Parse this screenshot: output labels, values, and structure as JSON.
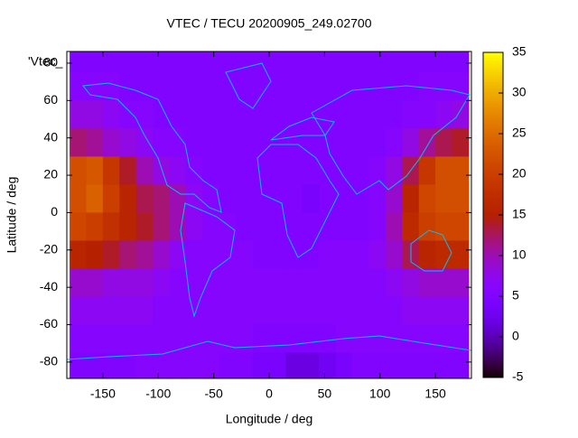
{
  "chart_data": {
    "type": "heatmap",
    "title": "VTEC / TECU 20200905_249.02700",
    "x_label": "Longitude / deg",
    "y_label": "Latitude / deg",
    "legend_label": "'Vtec_",
    "colormap": "gnuplot",
    "line_color": "#00bfff",
    "xlim": [
      -182.5,
      182.5
    ],
    "ylim": [
      -88.75,
      86.25
    ],
    "zlim": [
      -5,
      35
    ],
    "xticks": [
      -150,
      -100,
      -50,
      0,
      50,
      100,
      150
    ],
    "yticks": [
      -80,
      -60,
      -40,
      -20,
      0,
      20,
      40,
      60,
      80
    ],
    "zticks": [
      -5,
      0,
      5,
      10,
      15,
      20,
      25,
      30,
      35
    ],
    "x": [
      -172.5,
      -157.5,
      -142.5,
      -127.5,
      -112.5,
      -97.5,
      -82.5,
      -67.5,
      -52.5,
      -37.5,
      -22.5,
      -7.5,
      7.5,
      22.5,
      37.5,
      52.5,
      67.5,
      82.5,
      97.5,
      112.5,
      127.5,
      142.5,
      157.5,
      172.5
    ],
    "y": [
      82.5,
      67.5,
      52.5,
      37.5,
      22.5,
      7.5,
      -7.5,
      -22.5,
      -37.5,
      -52.5,
      -67.5,
      -82.5
    ],
    "z": [
      [
        5,
        5,
        5,
        5,
        5,
        5,
        5,
        5,
        5,
        5,
        5,
        5,
        5,
        5,
        5,
        5,
        5,
        5,
        5,
        5,
        5,
        5,
        5,
        5
      ],
      [
        6,
        6,
        6,
        5,
        5,
        5,
        5,
        5,
        5,
        5,
        5,
        5,
        5,
        5,
        5,
        5,
        5,
        5,
        5,
        5,
        5,
        6,
        6,
        6
      ],
      [
        8,
        8,
        7,
        6,
        6,
        5,
        5,
        5,
        5,
        5,
        5,
        5,
        5,
        5,
        5,
        5,
        5,
        5,
        5,
        5,
        6,
        6,
        7,
        8
      ],
      [
        12,
        11,
        9,
        8,
        7,
        6,
        6,
        5,
        5,
        5,
        5,
        5,
        5,
        5,
        5,
        5,
        5,
        5,
        5,
        6,
        8,
        11,
        13,
        14
      ],
      [
        22,
        23,
        19,
        14,
        10,
        8,
        7,
        6,
        5,
        5,
        5,
        5,
        5,
        5,
        5,
        5,
        5,
        5,
        6,
        8,
        13,
        19,
        22,
        22
      ],
      [
        22,
        24,
        20,
        16,
        13,
        12,
        10,
        7,
        6,
        5,
        5,
        5,
        5,
        5,
        4,
        5,
        5,
        5,
        6,
        9,
        16,
        21,
        22,
        22
      ],
      [
        21,
        20,
        18,
        16,
        14,
        12,
        10,
        7,
        6,
        6,
        5,
        5,
        5,
        5,
        5,
        5,
        5,
        5,
        6,
        10,
        17,
        20,
        21,
        21
      ],
      [
        16,
        15,
        14,
        12,
        11,
        9,
        7,
        6,
        6,
        6,
        6,
        5,
        5,
        5,
        5,
        6,
        6,
        6,
        7,
        9,
        13,
        16,
        17,
        17
      ],
      [
        9,
        9,
        8,
        8,
        8,
        7,
        6,
        6,
        6,
        6,
        6,
        6,
        6,
        6,
        6,
        6,
        6,
        6,
        6,
        7,
        8,
        9,
        9,
        9
      ],
      [
        7,
        7,
        7,
        7,
        7,
        6,
        6,
        6,
        6,
        6,
        6,
        6,
        6,
        6,
        6,
        6,
        6,
        6,
        6,
        6,
        7,
        7,
        7,
        7
      ],
      [
        6,
        6,
        6,
        6,
        6,
        6,
        6,
        6,
        6,
        6,
        6,
        5,
        5,
        5,
        5,
        5,
        6,
        6,
        6,
        6,
        6,
        6,
        6,
        6
      ],
      [
        5,
        5,
        5,
        5,
        6,
        6,
        6,
        6,
        6,
        5,
        5,
        4,
        4,
        2,
        2,
        3,
        4,
        5,
        5,
        5,
        5,
        5,
        5,
        5
      ]
    ]
  }
}
